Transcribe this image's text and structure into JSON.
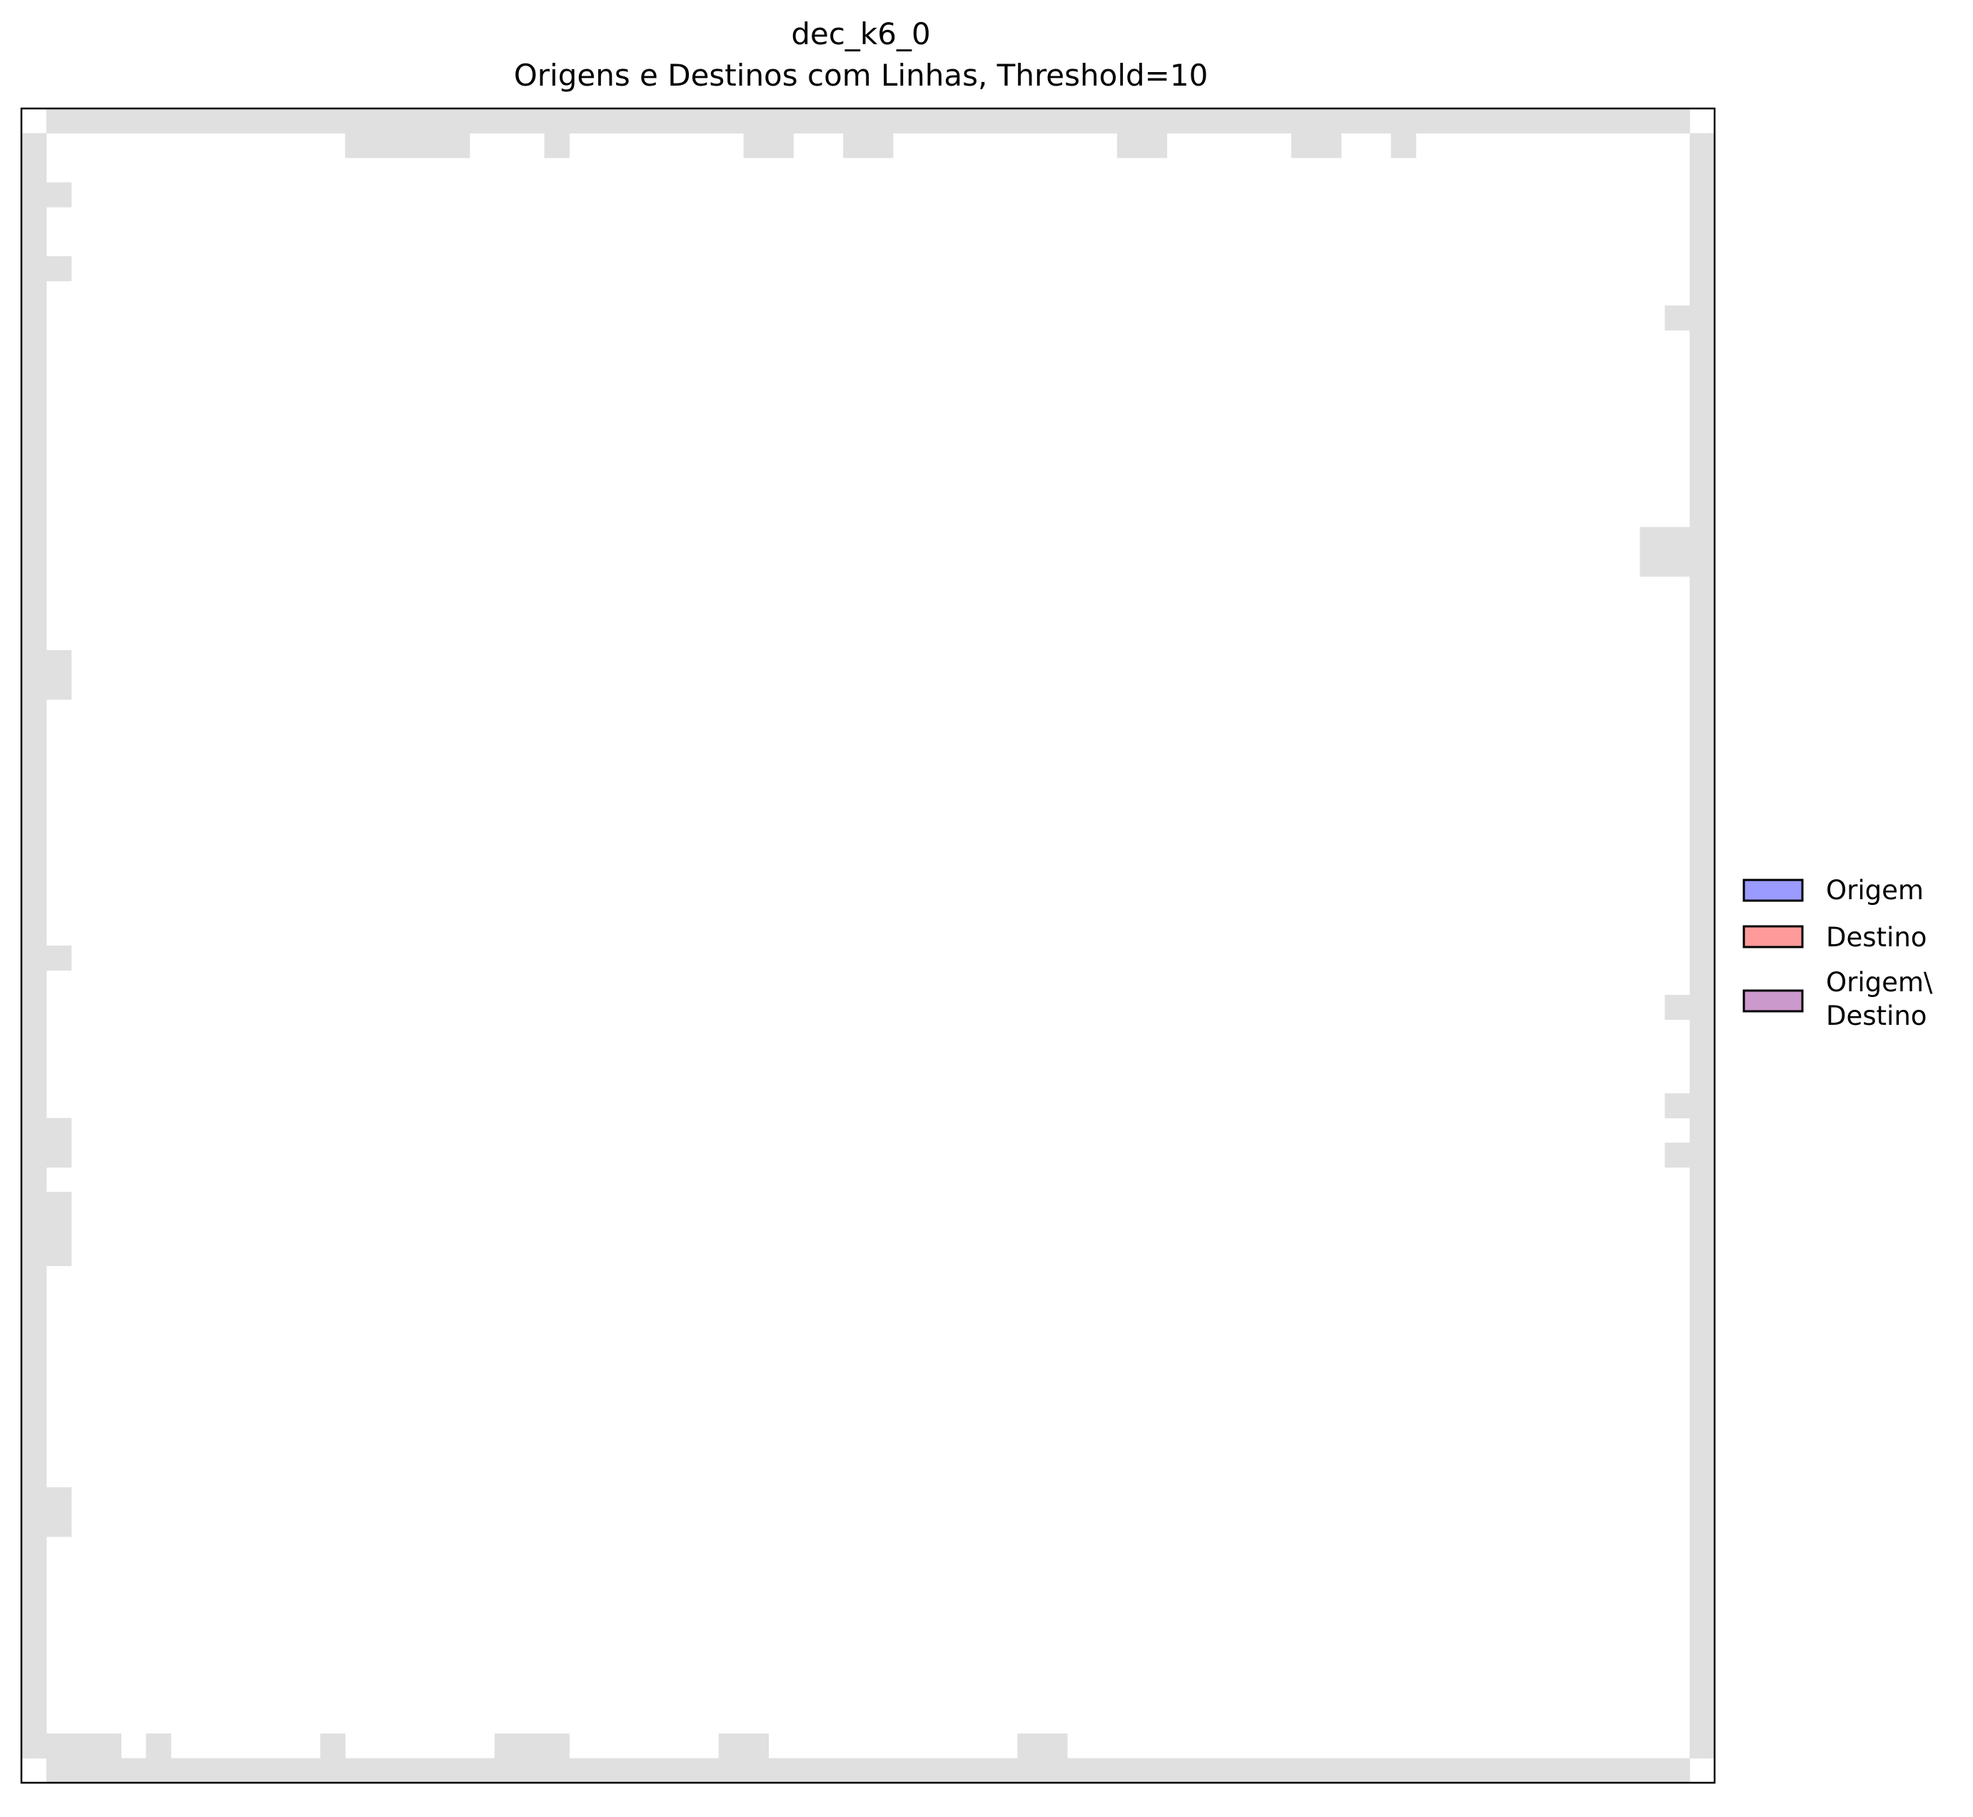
{
  "chart_data": {
    "type": "heatmap",
    "title": "dec_k6_0",
    "subtitle": "Origens e Destinos com Linhas, Threshold=10",
    "xlabel": "",
    "ylabel": "",
    "axes_ticks": false,
    "grid": false,
    "grid_size": [
      68,
      68
    ],
    "colors": {
      "wall": "#e0e0e0",
      "floor": "#ffffff",
      "origem": "#9a9aff",
      "destino": "#ff9a9a",
      "origem_destino": "#cc99cc",
      "frame": "#000000"
    },
    "wall_cells": [
      {
        "col": 1,
        "row": 0,
        "w": 66,
        "h": 1
      },
      {
        "col": 1,
        "row": 67,
        "w": 66,
        "h": 1
      },
      {
        "col": 0,
        "row": 1,
        "w": 1,
        "h": 66
      },
      {
        "col": 67,
        "row": 1,
        "w": 1,
        "h": 66
      },
      {
        "col": 13,
        "row": 1,
        "w": 5,
        "h": 1
      },
      {
        "col": 21,
        "row": 1,
        "w": 1,
        "h": 1
      },
      {
        "col": 29,
        "row": 1,
        "w": 2,
        "h": 1
      },
      {
        "col": 33,
        "row": 1,
        "w": 2,
        "h": 1
      },
      {
        "col": 44,
        "row": 1,
        "w": 2,
        "h": 1
      },
      {
        "col": 51,
        "row": 1,
        "w": 2,
        "h": 1
      },
      {
        "col": 55,
        "row": 1,
        "w": 1,
        "h": 1
      },
      {
        "col": 1,
        "row": 66,
        "w": 3,
        "h": 1
      },
      {
        "col": 5,
        "row": 66,
        "w": 1,
        "h": 1
      },
      {
        "col": 12,
        "row": 66,
        "w": 1,
        "h": 1
      },
      {
        "col": 19,
        "row": 66,
        "w": 3,
        "h": 1
      },
      {
        "col": 28,
        "row": 66,
        "w": 2,
        "h": 1
      },
      {
        "col": 40,
        "row": 66,
        "w": 2,
        "h": 1
      },
      {
        "col": 1,
        "row": 3,
        "w": 1,
        "h": 1
      },
      {
        "col": 1,
        "row": 6,
        "w": 1,
        "h": 1
      },
      {
        "col": 1,
        "row": 22,
        "w": 1,
        "h": 2
      },
      {
        "col": 1,
        "row": 34,
        "w": 1,
        "h": 1
      },
      {
        "col": 1,
        "row": 41,
        "w": 1,
        "h": 2
      },
      {
        "col": 1,
        "row": 44,
        "w": 1,
        "h": 3
      },
      {
        "col": 1,
        "row": 56,
        "w": 1,
        "h": 2
      },
      {
        "col": 66,
        "row": 8,
        "w": 1,
        "h": 1
      },
      {
        "col": 65,
        "row": 17,
        "w": 2,
        "h": 2
      },
      {
        "col": 66,
        "row": 36,
        "w": 1,
        "h": 1
      },
      {
        "col": 66,
        "row": 40,
        "w": 1,
        "h": 1
      },
      {
        "col": 66,
        "row": 42,
        "w": 1,
        "h": 1
      }
    ],
    "legend": {
      "placement": "right-center",
      "entries": [
        {
          "label": "Origem",
          "color_key": "origem"
        },
        {
          "label": "Destino",
          "color_key": "destino"
        },
        {
          "label_lines": [
            "Origem\\",
            "Destino"
          ],
          "color_key": "origem_destino"
        }
      ]
    }
  }
}
